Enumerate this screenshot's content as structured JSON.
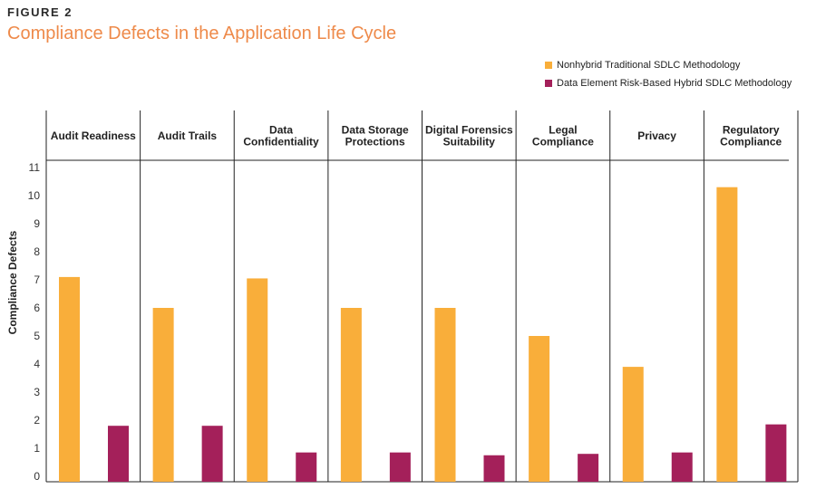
{
  "figure": {
    "label": "FIGURE 2",
    "title": "Compliance Defects in the Application Life Cycle"
  },
  "colors": {
    "series1": "#f9ae3a",
    "series2": "#a4205a",
    "title": "#ee8a4a"
  },
  "chart_data": {
    "type": "bar",
    "title": "Compliance Defects in the Application Life Cycle",
    "xlabel": "",
    "ylabel": "Compliance Defects",
    "ylim": [
      0,
      11
    ],
    "yticks": [
      0,
      1,
      2,
      3,
      4,
      5,
      6,
      7,
      8,
      9,
      10,
      11
    ],
    "categories": [
      [
        "Audit Readiness"
      ],
      [
        "Audit Trails"
      ],
      [
        "Data",
        "Confidentiality"
      ],
      [
        "Data Storage",
        "Protections"
      ],
      [
        "Digital Forensics",
        "Suitability"
      ],
      [
        "Legal",
        "Compliance"
      ],
      [
        "Privacy"
      ],
      [
        "Regulatory",
        "Compliance"
      ]
    ],
    "series": [
      {
        "name": "Nonhybrid Traditional SDLC Methodology",
        "values": [
          7.1,
          6.0,
          7.05,
          6.0,
          6.0,
          5.0,
          3.9,
          10.3
        ]
      },
      {
        "name": "Data Element Risk-Based Hybrid SDLC Methodology",
        "values": [
          1.8,
          1.8,
          0.85,
          0.85,
          0.75,
          0.8,
          0.85,
          1.85
        ]
      }
    ],
    "legend_position": "top-right",
    "grid": false
  }
}
